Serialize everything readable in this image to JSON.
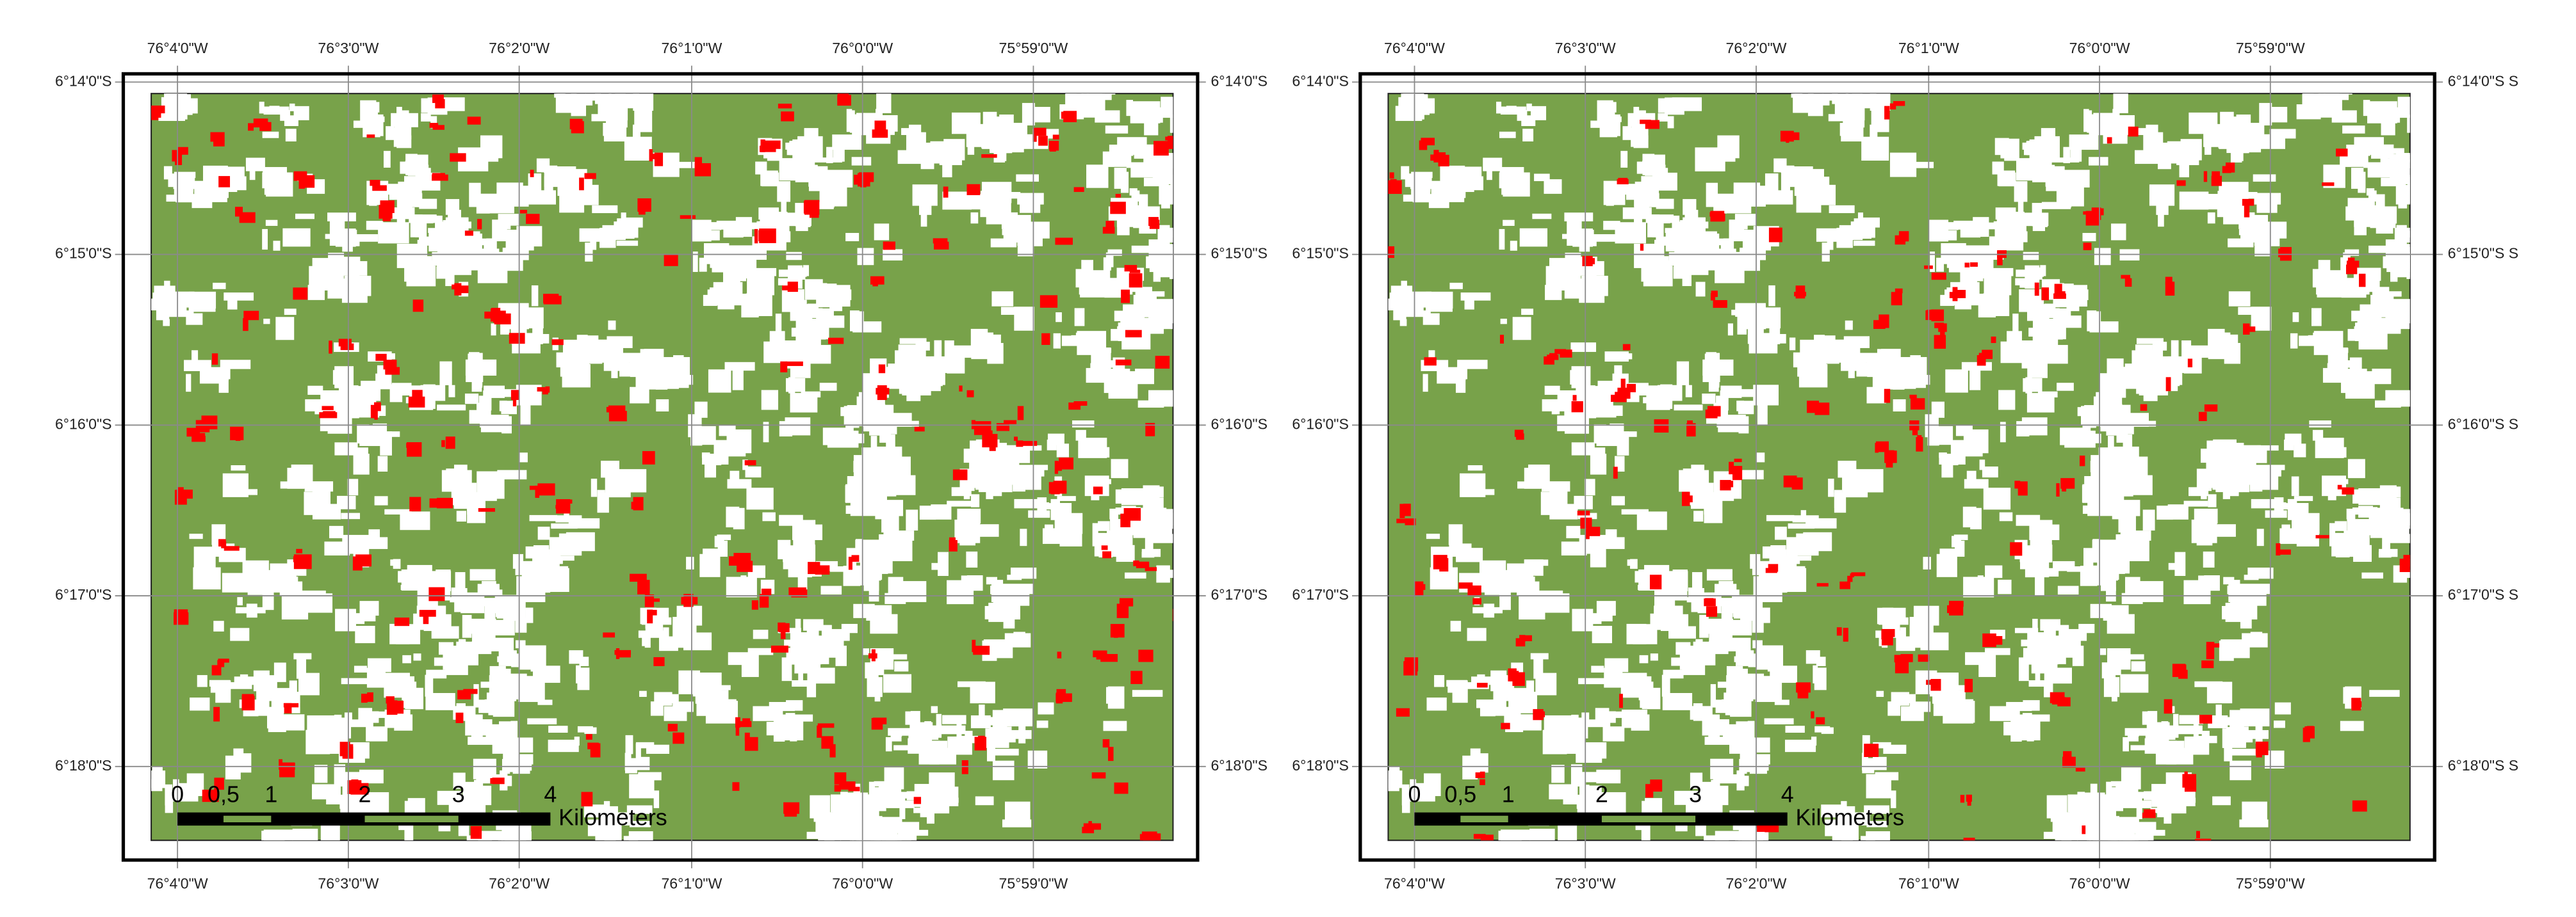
{
  "maps": [
    {
      "top_labels": [
        "76°4'0\"W",
        "76°3'0\"W",
        "76°2'0\"W",
        "76°1'0\"W",
        "76°0'0\"W",
        "75°59'0\"W"
      ],
      "bottom_labels": [
        "76°4'0\"W",
        "76°3'0\"W",
        "76°2'0\"W",
        "76°1'0\"W",
        "76°0'0\"W",
        "75°59'0\"W"
      ],
      "left_labels": [
        "6°14'0\"S",
        "6°15'0\"S",
        "6°16'0\"S",
        "6°17'0\"S",
        "6°18'0\"S"
      ],
      "right_labels": [
        "6°14'0\"S",
        "6°15'0\"S",
        "6°16'0\"S",
        "6°17'0\"S",
        "6°18'0\"S"
      ],
      "scale_bar": {
        "ticks": [
          "0",
          "0,5",
          "1",
          "2",
          "3",
          "4"
        ],
        "unit": "Kilometers"
      }
    },
    {
      "top_labels": [
        "76°4'0\"W",
        "76°3'0\"W",
        "76°2'0\"W",
        "76°1'0\"W",
        "76°0'0\"W",
        "75°59'0\"W"
      ],
      "bottom_labels": [
        "76°4'0\"W",
        "76°3'0\"W",
        "76°2'0\"W",
        "76°1'0\"W",
        "76°0'0\"W",
        "75°59'0\"W"
      ],
      "left_labels": [
        "6°14'0\"S",
        "6°15'0\"S",
        "6°16'0\"S",
        "6°17'0\"S",
        "6°18'0\"S"
      ],
      "right_labels": [
        "6°14'0\"S S",
        "6°15'0\"S S",
        "6°16'0\"S S",
        "6°17'0\"S S",
        "6°18'0\"S S"
      ],
      "scale_bar": {
        "ticks": [
          "0",
          "0,5",
          "1",
          "2",
          "3",
          "4"
        ],
        "unit": "Kilometers"
      }
    }
  ]
}
